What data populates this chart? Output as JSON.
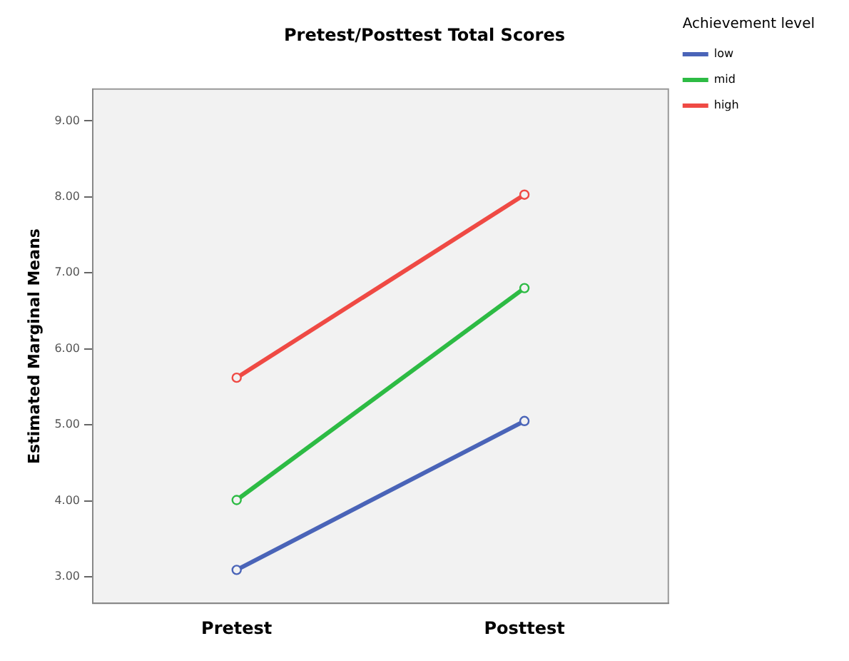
{
  "chart_data": {
    "type": "line",
    "title": "Pretest/Posttest Total Scores",
    "ylabel": "Estimated Marginal Means",
    "legend_title": "Achievement level",
    "categories": [
      "Pretest",
      "Posttest"
    ],
    "series": [
      {
        "name": "low",
        "color": "#4a64b8",
        "values": [
          3.09,
          5.05
        ]
      },
      {
        "name": "mid",
        "color": "#2dbb44",
        "values": [
          4.01,
          6.8
        ]
      },
      {
        "name": "high",
        "color": "#ef4a44",
        "values": [
          5.62,
          8.03
        ]
      }
    ],
    "ylim": [
      2.65,
      9.42
    ],
    "yticks": [
      {
        "value": 3,
        "label": "3.00"
      },
      {
        "value": 4,
        "label": "4.00"
      },
      {
        "value": 5,
        "label": "5.00"
      },
      {
        "value": 6,
        "label": "6.00"
      },
      {
        "value": 7,
        "label": "7.00"
      },
      {
        "value": 8,
        "label": "8.00"
      },
      {
        "value": 9,
        "label": "9.00"
      }
    ],
    "grid": false,
    "legend": "top right",
    "marker": "circle",
    "line_style": "solid"
  }
}
